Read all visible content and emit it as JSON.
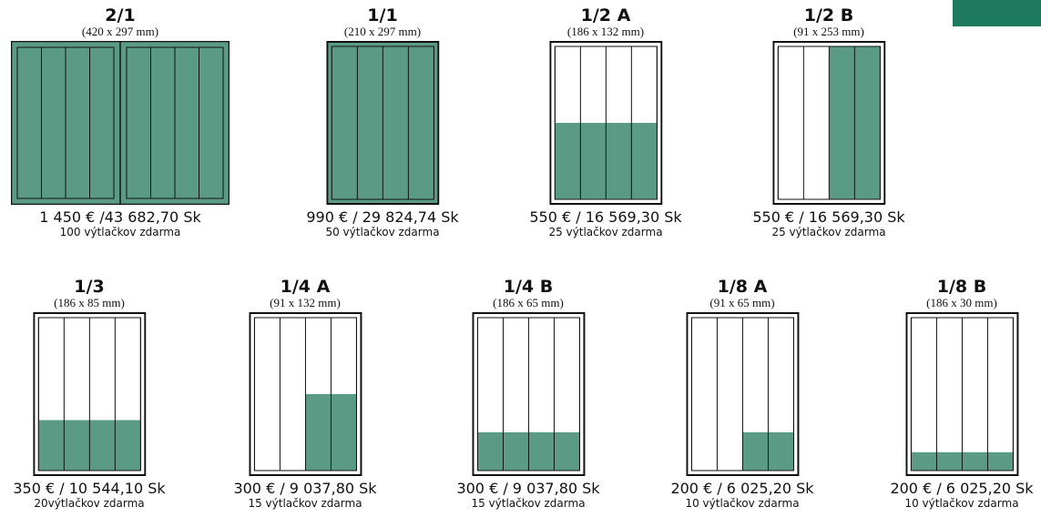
{
  "brand_color": "#1e7a5c",
  "page_fill_color": "#5b9b86",
  "ads": [
    {
      "id": "2-1",
      "title": "2/1",
      "size": "(420 x 297 mm)",
      "price": "1 450 € /43 682,70 Sk",
      "copies": "100 výtlačkov zdarma",
      "fill_fraction": 1.0,
      "fill_columns": "all",
      "spread": true
    },
    {
      "id": "1-1",
      "title": "1/1",
      "size": "(210 x 297 mm)",
      "price": "990 € / 29 824,74 Sk",
      "copies": "50 výtlačkov zdarma",
      "fill_fraction": 1.0,
      "fill_columns": "all",
      "spread": false
    },
    {
      "id": "1-2a",
      "title": "1/2 A",
      "size": "(186 x 132 mm)",
      "price": "550 € / 16 569,30 Sk",
      "copies": "25 výtlačkov zdarma",
      "fill_fraction": 0.5,
      "fill_columns": "all",
      "spread": false
    },
    {
      "id": "1-2b",
      "title": "1/2 B",
      "size": "(91 x 253 mm)",
      "price": "550 € / 16 569,30 Sk",
      "copies": "25 výtlačkov zdarma",
      "fill_fraction": 1.0,
      "fill_columns": "right-half",
      "spread": false
    },
    {
      "id": "1-3",
      "title": "1/3",
      "size": "(186 x 85 mm)",
      "price": "350 € / 10 544,10 Sk",
      "copies": "20výtlačkov zdarma",
      "fill_fraction": 0.33,
      "fill_columns": "all",
      "spread": false
    },
    {
      "id": "1-4a",
      "title": "1/4 A",
      "size": "(91 x 132 mm)",
      "price": "300 € / 9 037,80 Sk",
      "copies": "15 výtlačkov zdarma",
      "fill_fraction": 0.5,
      "fill_columns": "right-half",
      "spread": false
    },
    {
      "id": "1-4b",
      "title": "1/4 B",
      "size": "(186 x 65 mm)",
      "price": "300 € / 9 037,80 Sk",
      "copies": "15 výtlačkov zdarma",
      "fill_fraction": 0.25,
      "fill_columns": "all",
      "spread": false
    },
    {
      "id": "1-8a",
      "title": "1/8 A",
      "size": "(91 x 65 mm)",
      "price": "200 € / 6 025,20 Sk",
      "copies": "10 výtlačkov zdarma",
      "fill_fraction": 0.25,
      "fill_columns": "right-half",
      "spread": false
    },
    {
      "id": "1-8b",
      "title": "1/8 B",
      "size": "(186 x 30 mm)",
      "price": "200 € / 6 025,20 Sk",
      "copies": "10 výtlačkov zdarma",
      "fill_fraction": 0.12,
      "fill_columns": "all",
      "spread": false
    }
  ]
}
